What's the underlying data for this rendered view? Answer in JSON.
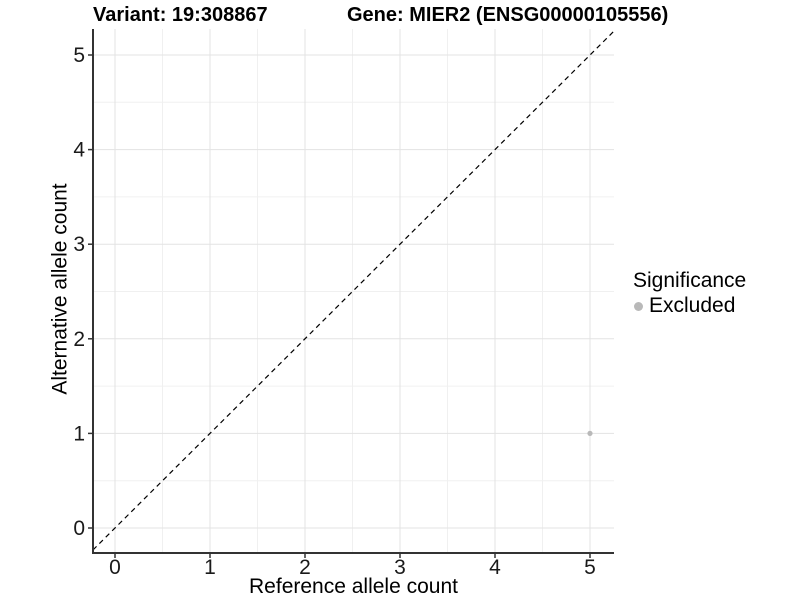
{
  "header": {
    "variant_title": "Variant: 19:308867",
    "gene_title": "Gene: MIER2 (ENSG00000105556)"
  },
  "chart_data": {
    "type": "scatter",
    "title_left": "Variant: 19:308867",
    "title_right": "Gene: MIER2 (ENSG00000105556)",
    "xlabel": "Reference allele count",
    "ylabel": "Alternative allele count",
    "xlim": [
      -0.25,
      5.25
    ],
    "ylim": [
      -0.25,
      5.25
    ],
    "xticks": [
      0,
      1,
      2,
      3,
      4,
      5
    ],
    "yticks": [
      0,
      1,
      2,
      3,
      4,
      5
    ],
    "minor_ticks": [
      0.5,
      1.5,
      2.5,
      3.5,
      4.5
    ],
    "grid": true,
    "identity_line": {
      "style": "dashed",
      "color": "#000000"
    },
    "series": [
      {
        "name": "Excluded",
        "color": "#b9b9b9",
        "points": [
          {
            "x": 5,
            "y": 1
          }
        ]
      }
    ],
    "legend": {
      "title": "Significance",
      "position": "right",
      "items": [
        {
          "label": "Excluded",
          "color": "#b9b9b9"
        }
      ]
    },
    "colors": {
      "grid_major": "#e3e3e3",
      "grid_minor": "#f0f0f0",
      "axis_line": "#333333",
      "tick_label": "#1a1a1a",
      "point": "#b9b9b9"
    }
  }
}
